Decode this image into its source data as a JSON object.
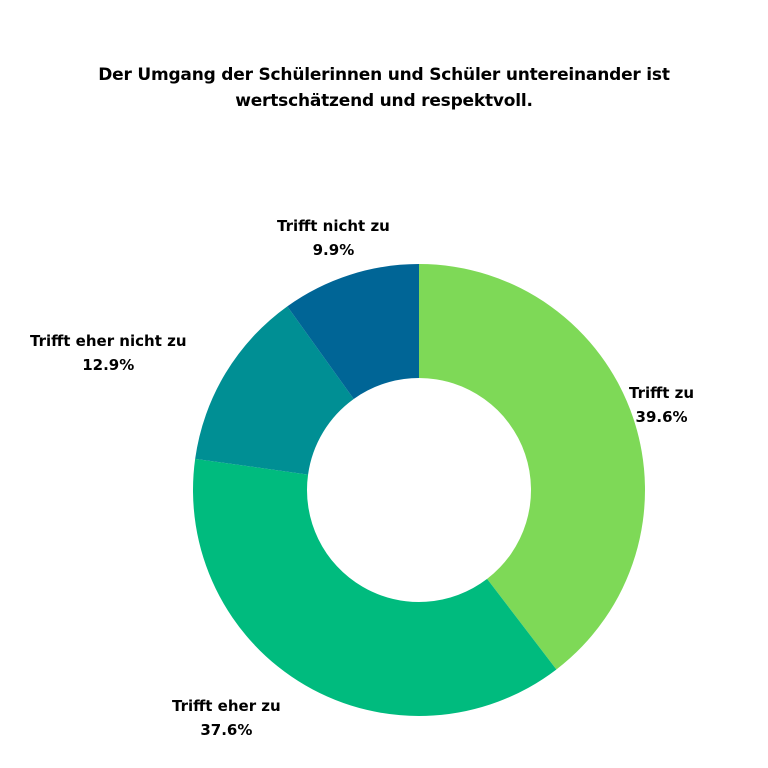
{
  "chart_data": {
    "type": "pie",
    "donut": true,
    "title_lines": [
      "Der Umgang der Schülerinnen und Schüler untereinander ist",
      "wertschätzend und respektvoll."
    ],
    "categories": [
      "Trifft zu",
      "Trifft eher zu",
      "Trifft eher nicht zu",
      "Trifft nicht zu"
    ],
    "values": [
      39.6,
      37.6,
      12.9,
      9.9
    ],
    "value_labels": [
      "39.6%",
      "37.6%",
      "12.9%",
      "9.9%"
    ],
    "colors": [
      "#7ed957",
      "#00bb7e",
      "#008f94",
      "#006596"
    ],
    "start_angle": "12 o'clock",
    "direction": "clockwise",
    "legend": "none"
  }
}
